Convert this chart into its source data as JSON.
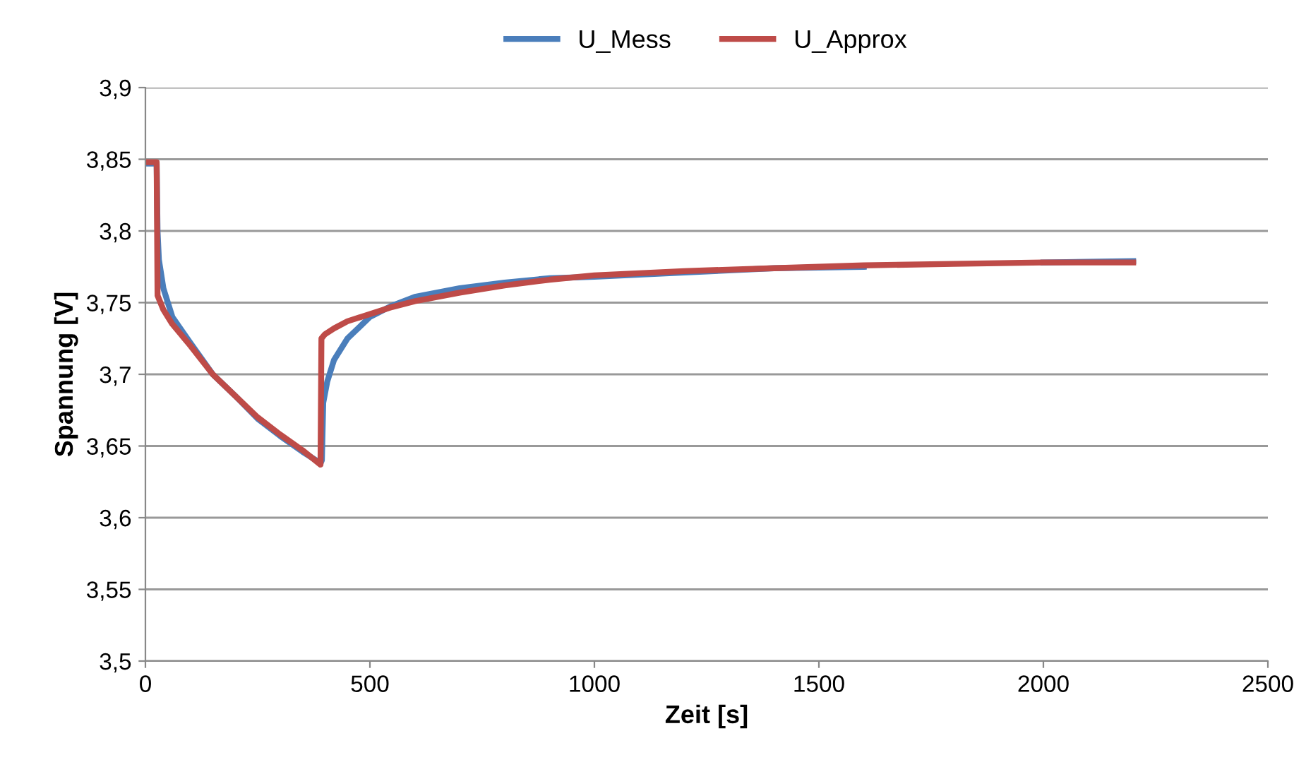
{
  "chart_data": {
    "type": "line",
    "xlabel": "Zeit [s]",
    "ylabel": "Spannung [V]",
    "xlim": [
      0,
      2500
    ],
    "xticks": [
      0,
      500,
      1000,
      1500,
      2000,
      2500
    ],
    "ylim": [
      3.5,
      3.9
    ],
    "yticks": [
      {
        "value": 3.5,
        "label": "3,5"
      },
      {
        "value": 3.55,
        "label": "3,55"
      },
      {
        "value": 3.6,
        "label": "3,6"
      },
      {
        "value": 3.65,
        "label": "3,65"
      },
      {
        "value": 3.7,
        "label": "3,7"
      },
      {
        "value": 3.75,
        "label": "3,75"
      },
      {
        "value": 3.8,
        "label": "3,8"
      },
      {
        "value": 3.85,
        "label": "3,85"
      },
      {
        "value": 3.9,
        "label": "3,9"
      }
    ],
    "grid": "y",
    "legend": "top",
    "marker": "none",
    "line_style": "solid",
    "series": [
      {
        "name": "U_Mess",
        "color": "#4a7ebb",
        "x": [
          0,
          25,
          27,
          30,
          40,
          60,
          100,
          150,
          200,
          250,
          300,
          350,
          390,
          393,
          396,
          405,
          420,
          450,
          500,
          550,
          600,
          700,
          800,
          900,
          1000,
          1200,
          1400,
          1600,
          1800,
          2000,
          2200
        ],
        "values": [
          3.847,
          3.847,
          3.8,
          3.78,
          3.76,
          3.74,
          3.722,
          3.7,
          3.685,
          3.669,
          3.657,
          3.646,
          3.638,
          3.64,
          3.68,
          3.695,
          3.71,
          3.725,
          3.74,
          3.748,
          3.754,
          3.76,
          3.764,
          3.767,
          3.768,
          3.771,
          3.774,
          3.775,
          null,
          3.778,
          3.779
        ]
      },
      {
        "name": "U_Approx",
        "color": "#be4b48",
        "x": [
          0,
          25,
          27,
          40,
          60,
          100,
          150,
          200,
          250,
          300,
          350,
          390,
          392,
          400,
          420,
          450,
          500,
          550,
          600,
          700,
          800,
          900,
          1000,
          1200,
          1400,
          1600,
          1800,
          2000,
          2200
        ],
        "values": [
          3.848,
          3.848,
          3.755,
          3.745,
          3.735,
          3.72,
          3.7,
          3.685,
          3.67,
          3.658,
          3.647,
          3.637,
          3.725,
          3.728,
          3.732,
          3.737,
          3.742,
          3.747,
          3.751,
          3.757,
          3.762,
          3.766,
          3.769,
          3.772,
          3.774,
          3.776,
          3.777,
          3.778,
          3.778
        ]
      }
    ]
  }
}
